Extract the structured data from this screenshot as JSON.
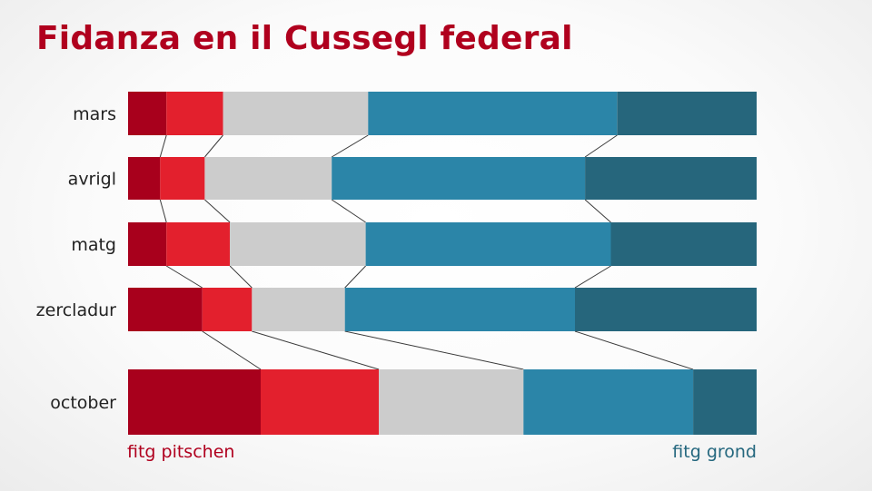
{
  "chart_data": {
    "type": "bar",
    "stacked": "100%",
    "orientation": "horizontal",
    "title": "Fidanza en il Cussegl federal",
    "categories": [
      "mars",
      "avrigl",
      "matg",
      "zercladur",
      "october"
    ],
    "series": [
      {
        "color": "#a8001c",
        "values": [
          6.1,
          5.1,
          6.1,
          11.8,
          21.1
        ]
      },
      {
        "color": "#e3202d",
        "values": [
          9.0,
          7.1,
          10.1,
          7.9,
          18.8
        ]
      },
      {
        "color": "#cccccc",
        "values": [
          23.1,
          20.2,
          21.6,
          14.8,
          23.0
        ]
      },
      {
        "color": "#2b85a8",
        "values": [
          39.6,
          40.3,
          39.0,
          36.6,
          27.0
        ]
      },
      {
        "color": "#26667c",
        "values": [
          22.2,
          27.3,
          23.2,
          28.9,
          10.1
        ]
      }
    ],
    "left_end_label": "fitg pitschen",
    "right_end_label": "fitg grond",
    "left_end_color": "#b0001e",
    "right_end_color": "#24677e",
    "connector_lines": true,
    "legend": "none",
    "grid": false
  }
}
